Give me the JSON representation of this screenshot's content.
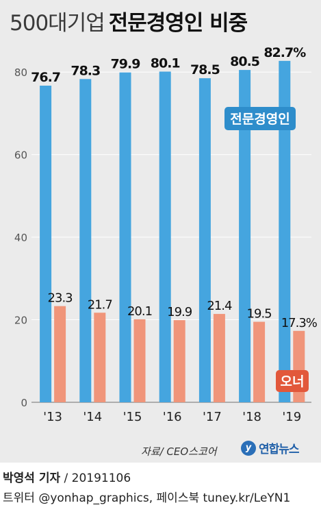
{
  "title": {
    "light": "500대기업",
    "bold": "전문경영인 비중"
  },
  "chart_data": {
    "type": "bar",
    "categories": [
      "'13",
      "'14",
      "'15",
      "'16",
      "'17",
      "'18",
      "'19"
    ],
    "series": [
      {
        "name": "전문경영인",
        "values": [
          76.7,
          78.3,
          79.9,
          80.1,
          78.5,
          80.5,
          82.7
        ],
        "labels": [
          "76.7",
          "78.3",
          "79.9",
          "80.1",
          "78.5",
          "80.5",
          "82.7%"
        ],
        "color": "#45a5df"
      },
      {
        "name": "오너",
        "values": [
          23.3,
          21.7,
          20.1,
          19.9,
          21.4,
          19.5,
          17.3
        ],
        "labels": [
          "23.3",
          "21.7",
          "20.1",
          "19.9",
          "21.4",
          "19.5",
          "17.3%"
        ],
        "color": "#f0957a"
      }
    ],
    "yticks": [
      0,
      20,
      40,
      60,
      80
    ],
    "ylim": [
      0,
      84
    ],
    "grid": true,
    "legend_colors": {
      "series0": "#2e8dcb",
      "series1": "#e2583b"
    }
  },
  "footer": {
    "source": "자료/ CEO스코어",
    "logo_mark": "y",
    "logo_text": "연합뉴스",
    "reporter": "박영석 기자",
    "date": " / 20191106",
    "social": "트위터 @yonhap_graphics, 페이스북 tuney.kr/LeYN1"
  }
}
